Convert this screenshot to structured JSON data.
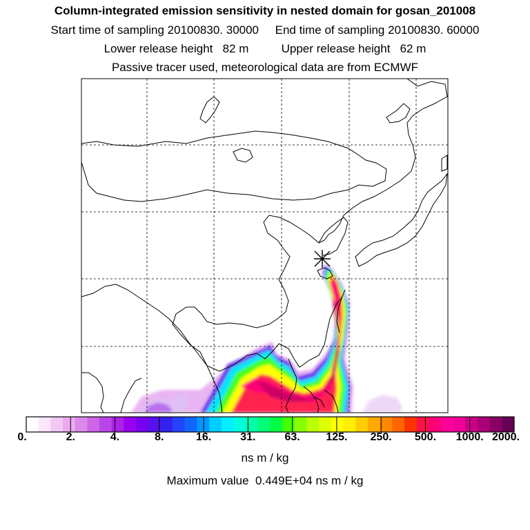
{
  "header": {
    "title": "Column-integrated emission sensitivity in nested domain for gosan_201008",
    "start_label": "Start time of sampling 20100830. 30000",
    "end_label": "End time of sampling 20100830. 60000",
    "lower_label": "Lower release height   82 m",
    "upper_label": "Upper release height   62 m",
    "tracer_note": "Passive tracer used, meteorological data are from ECMWF"
  },
  "map": {
    "grid": true,
    "release_marker": "asterisk",
    "colors": {
      "background": "#ffffff",
      "coast": "#000000"
    }
  },
  "colorbar": {
    "tick_labels": [
      "0.",
      "2.",
      "4.",
      "8.",
      "16.",
      "31.",
      "63.",
      "125.",
      "250.",
      "500.",
      "1000.",
      "2000."
    ],
    "units": "ns m / kg",
    "max_value_text": "Maximum value  0.449E+04 ns m / kg",
    "colors": [
      "#ffffff",
      "#fbe6fb",
      "#f3c8f5",
      "#ebaaf0",
      "#d98ae9",
      "#cc66e6",
      "#bb44e6",
      "#aa22e6",
      "#9900ee",
      "#7700ee",
      "#5511ee",
      "#3322ee",
      "#2244ff",
      "#1166ff",
      "#0099ff",
      "#00ccff",
      "#00eeff",
      "#00ffdd",
      "#00ffaa",
      "#00ff77",
      "#00ff44",
      "#44ff00",
      "#88ff00",
      "#bbff00",
      "#ddff00",
      "#ffff00",
      "#ffee00",
      "#ffcc00",
      "#ffaa00",
      "#ff8800",
      "#ff6600",
      "#ff3300",
      "#ff1144",
      "#ff0077",
      "#ff0099",
      "#ee0099",
      "#cc0088",
      "#aa0077",
      "#880066",
      "#660055"
    ]
  }
}
